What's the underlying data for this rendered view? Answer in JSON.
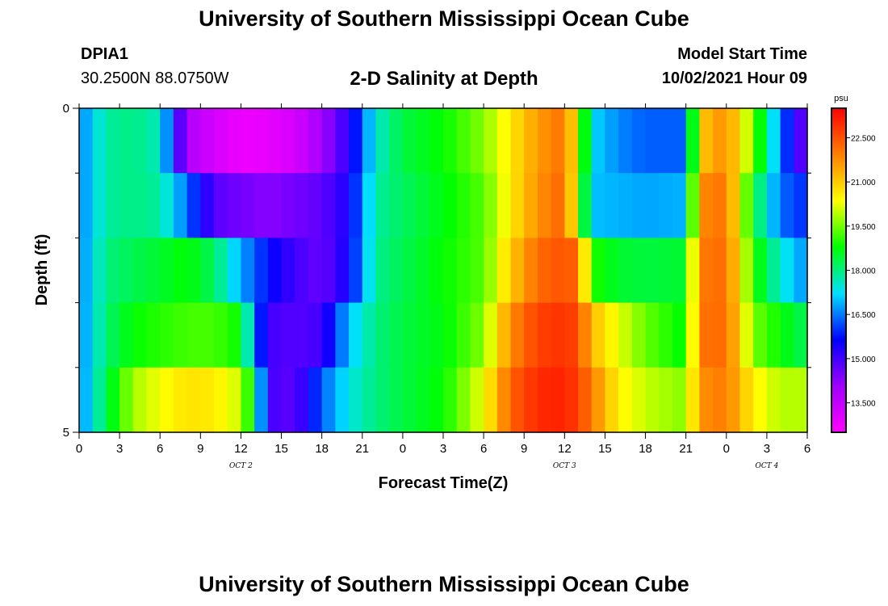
{
  "header": {
    "title": "University of Southern Mississippi Ocean Cube",
    "station_id": "DPIA1",
    "station_coords": "30.2500N  88.0750W",
    "chart_title": "2-D Salinity at Depth",
    "start_label": "Model Start Time",
    "start_value": "10/02/2021 Hour 09"
  },
  "footer": {
    "title": "University of Southern Mississippi Ocean Cube"
  },
  "chart_data": {
    "type": "heatmap",
    "title": "2-D Salinity at Depth",
    "xlabel": "Forecast Time(Z)",
    "ylabel": "Depth (ft)",
    "x_ticks": [
      "0",
      "3",
      "6",
      "9",
      "12",
      "15",
      "18",
      "21",
      "0",
      "3",
      "6",
      "9",
      "12",
      "15",
      "18",
      "21",
      "0",
      "3",
      "6"
    ],
    "date_labels": [
      {
        "label": "OCT 2",
        "tick_index": 4
      },
      {
        "label": "OCT 3",
        "tick_index": 12
      },
      {
        "label": "OCT 4",
        "tick_index": 17
      }
    ],
    "y_ticks": [
      "0",
      "5"
    ],
    "ylim": [
      0,
      5
    ],
    "y_minor_ticks": 4,
    "colorbar": {
      "unit": "psu",
      "min": 12.5,
      "max": 23.5,
      "ticks": [
        "13.500",
        "15.000",
        "16.500",
        "18.000",
        "19.500",
        "21.000",
        "22.500"
      ],
      "tick_values": [
        13.5,
        15.0,
        16.5,
        18.0,
        19.5,
        21.0,
        22.5
      ],
      "colors": [
        "#ff00ff",
        "#a000ff",
        "#0000ff",
        "#00e0ff",
        "#00ff00",
        "#ffff00",
        "#ff8000",
        "#ff0000"
      ]
    },
    "time_step_hours": 1,
    "hours": 54,
    "depth_levels": 5,
    "keyframes": [
      {
        "hour": 0,
        "values": [
          16.5,
          16.5,
          16.5,
          16.5,
          16.5
        ]
      },
      {
        "hour": 2,
        "values": [
          17.8,
          17.8,
          18.0,
          18.1,
          18.3
        ]
      },
      {
        "hour": 4,
        "values": [
          18.0,
          18.0,
          18.3,
          18.8,
          19.8
        ]
      },
      {
        "hour": 6,
        "values": [
          17.6,
          17.8,
          18.5,
          19.0,
          20.3
        ]
      },
      {
        "hour": 8,
        "values": [
          13.8,
          16.4,
          18.8,
          19.2,
          20.7
        ]
      },
      {
        "hour": 10,
        "values": [
          13.2,
          14.8,
          18.2,
          19.2,
          20.6
        ]
      },
      {
        "hour": 12,
        "values": [
          12.8,
          14.5,
          16.8,
          18.8,
          20.0
        ]
      },
      {
        "hour": 13,
        "values": [
          12.8,
          14.4,
          16.3,
          16.6,
          18.3
        ]
      },
      {
        "hour": 14,
        "values": [
          12.9,
          14.3,
          15.7,
          15.0,
          15.0
        ]
      },
      {
        "hour": 16,
        "values": [
          13.2,
          14.5,
          15.0,
          14.8,
          14.7
        ]
      },
      {
        "hour": 18,
        "values": [
          14.0,
          14.7,
          14.6,
          15.0,
          16.3
        ]
      },
      {
        "hour": 20,
        "values": [
          15.2,
          15.4,
          15.5,
          17.0,
          17.4
        ]
      },
      {
        "hour": 22,
        "values": [
          17.5,
          17.8,
          17.9,
          18.0,
          18.0
        ]
      },
      {
        "hour": 24,
        "values": [
          18.4,
          18.2,
          18.3,
          18.4,
          18.4
        ]
      },
      {
        "hour": 27,
        "values": [
          18.8,
          18.7,
          18.8,
          18.7,
          18.8
        ]
      },
      {
        "hour": 30,
        "values": [
          19.6,
          19.3,
          19.3,
          19.6,
          20.3
        ]
      },
      {
        "hour": 32,
        "values": [
          20.6,
          20.6,
          21.0,
          21.8,
          22.3
        ]
      },
      {
        "hour": 34,
        "values": [
          21.6,
          21.7,
          22.2,
          22.7,
          23.0
        ]
      },
      {
        "hour": 36,
        "values": [
          22.1,
          22.3,
          22.5,
          22.9,
          23.1
        ]
      },
      {
        "hour": 37,
        "values": [
          20.2,
          19.8,
          22.2,
          22.6,
          22.7
        ]
      },
      {
        "hour": 38,
        "values": [
          17.2,
          17.0,
          19.0,
          21.2,
          22.0
        ]
      },
      {
        "hour": 40,
        "values": [
          16.6,
          16.9,
          18.5,
          20.2,
          20.5
        ]
      },
      {
        "hour": 42,
        "values": [
          16.3,
          16.8,
          18.4,
          19.4,
          20.0
        ]
      },
      {
        "hour": 45,
        "values": [
          16.3,
          16.9,
          18.5,
          18.7,
          19.6
        ]
      },
      {
        "hour": 46,
        "values": [
          21.0,
          21.8,
          22.0,
          22.1,
          21.7
        ]
      },
      {
        "hour": 48,
        "values": [
          21.8,
          22.1,
          22.2,
          22.2,
          22.0
        ]
      },
      {
        "hour": 50,
        "values": [
          19.5,
          18.5,
          19.0,
          19.5,
          20.5
        ]
      },
      {
        "hour": 52,
        "values": [
          16.5,
          16.4,
          17.5,
          18.8,
          19.9
        ]
      },
      {
        "hour": 54,
        "values": [
          14.3,
          15.9,
          16.6,
          18.2,
          19.9
        ]
      }
    ]
  }
}
